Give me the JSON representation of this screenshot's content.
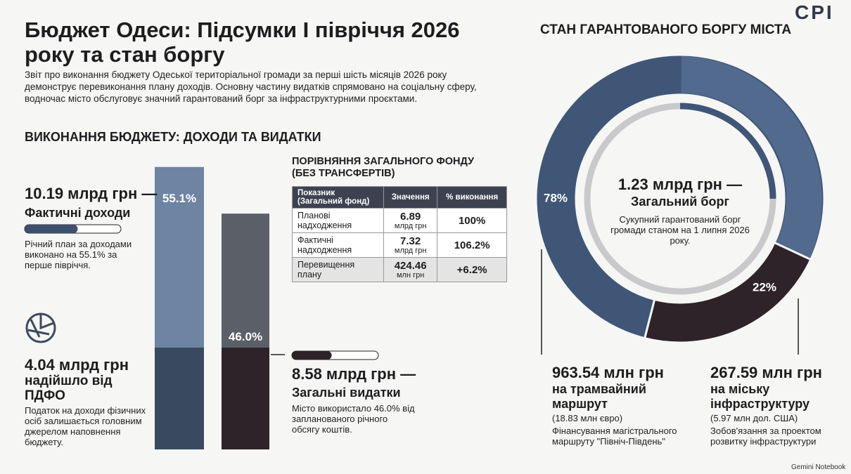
{
  "header": {
    "title": "Бюджет Одеси: Підсумки І півріччя 2026 року та стан боргу",
    "intro": "Звіт про виконання бюджету Одеської територіальної громади за перші шість місяців 2026 року демонструє перевиконання плану доходів. Основну частину видатків спрямовано на соціальну сферу, водночас місто обслуговує значний гарантований борг за інфраструктурними проєктами.",
    "logo": "CPI"
  },
  "budget": {
    "heading": "ВИКОНАННЯ БЮДЖЕТУ: ДОХОДИ ТА ВИДАТКИ",
    "revenue": {
      "amount": "10.19 млрд грн —",
      "label": "Фактичні доходи",
      "percent": 55.1,
      "percent_label": "55.1%",
      "note": "Річний план за доходами виконано на 55.1% за перше півріччя."
    },
    "expense": {
      "amount": "8.58 млрд грн —",
      "label": "Загальні видатки",
      "percent": 46.0,
      "percent_label": "46.0%",
      "note": "Місто використало 46.0% від запланованого річного обсягу коштів."
    },
    "pdfo": {
      "amount": "4.04 млрд грн",
      "label": "надійшло від ПДФО",
      "note": "Податок на доходи фізичних осіб залишається головним джерелом наповнення бюджету."
    }
  },
  "table": {
    "title": "ПОРІВНЯННЯ ЗАГАЛЬНОГО ФОНДУ (БЕЗ ТРАНСФЕРТІВ)",
    "columns": [
      "Показник (Загальний фонд)",
      "Значення",
      "% виконання"
    ],
    "rows": [
      [
        "Планові надходження",
        "6.89",
        "млрд грн",
        "100%"
      ],
      [
        "Фактичні надходження",
        "7.32",
        "млрд грн",
        "106.2%"
      ],
      [
        "Перевищення плану",
        "424.46",
        "млн грн",
        "+6.2%"
      ]
    ]
  },
  "debt": {
    "heading": "СТАН ГАРАНТОВАНОГО БОРГУ МІСТА",
    "total": "1.23 млрд грн —",
    "total_label": "Загальний борг",
    "note": "Сукупний гарантований борг громади станом на 1 липня 2026 року.",
    "segments": [
      {
        "value": 78,
        "label": "78%"
      },
      {
        "value": 22,
        "label": "22%"
      }
    ],
    "tram": {
      "amount": "963.54 млн грн",
      "label": "на трамвайний маршрут",
      "sub": "(18.83 млн євро)",
      "note": "Фінансування магістрального маршруту \"Північ-Південь\""
    },
    "infra": {
      "amount": "267.59 млн грн",
      "label": "на міську інфраструктуру",
      "sub": "(5.97 млн дол. США)",
      "note": "Зобов'язання за проектом розвитку інфраструктури"
    }
  },
  "footer": "Gemini Notebook"
}
